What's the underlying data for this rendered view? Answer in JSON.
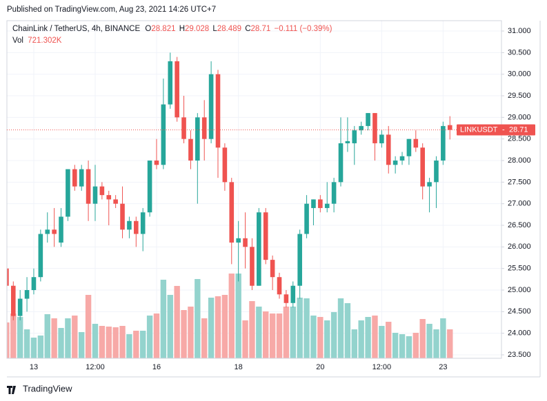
{
  "chart_data": {
    "type": "candlestick",
    "published": "Published on TradingView.com, Aug 23, 2021 14:26 UTC+7",
    "title": "ChainLink / TetherUS, 4h, BINANCE",
    "ohlc_letters": [
      "O",
      "H",
      "L",
      "C"
    ],
    "change_label": "−0.111 (−0.39%)",
    "symbol": "LINKUSDT",
    "brand": "TradingView",
    "categories": [
      null,
      null,
      null,
      null,
      "13",
      null,
      null,
      null,
      null,
      null,
      null,
      null,
      null,
      "12:00",
      null,
      null,
      null,
      null,
      null,
      null,
      null,
      null,
      "16",
      null,
      null,
      null,
      null,
      null,
      null,
      null,
      null,
      null,
      null,
      null,
      "18",
      null,
      null,
      null,
      null,
      null,
      null,
      null,
      null,
      null,
      null,
      null,
      "20",
      null,
      null,
      null,
      null,
      null,
      null,
      null,
      null,
      "12:00",
      null,
      null,
      null,
      null,
      null,
      null,
      null,
      null,
      "23",
      null
    ],
    "open": [
      25.5,
      25.1,
      24.4,
      24.8,
      25.0,
      25.3,
      26.3,
      26.4,
      26.1,
      26.7,
      27.8,
      27.4,
      27.8,
      27.0,
      27.4,
      27.2,
      27.1,
      27.0,
      26.4,
      26.6,
      26.3,
      26.8,
      28.0,
      27.9,
      29.3,
      30.3,
      29.0,
      28.5,
      28.0,
      29.0,
      28.5,
      30.0,
      28.3,
      27.5,
      26.1,
      26.2,
      26.0,
      25.1,
      26.8,
      25.7,
      25.3,
      24.9,
      24.7,
      25.1,
      26.3,
      26.9,
      27.1,
      26.9,
      27.0,
      27.5,
      28.4,
      28.4,
      28.7,
      28.8,
      29.1,
      28.4,
      28.6,
      27.9,
      28.0,
      28.1,
      28.5,
      28.3,
      27.4,
      27.5,
      28.0,
      28.821
    ],
    "high": [
      25.9,
      25.2,
      25.0,
      25.3,
      25.5,
      26.4,
      26.8,
      26.9,
      26.9,
      27.8,
      27.9,
      27.9,
      28.0,
      27.9,
      27.5,
      27.3,
      27.2,
      27.4,
      26.7,
      26.7,
      26.9,
      28.0,
      28.5,
      29.9,
      30.5,
      30.4,
      29.5,
      28.7,
      29.1,
      29.4,
      30.3,
      30.1,
      28.4,
      27.6,
      26.6,
      26.8,
      26.2,
      26.9,
      26.9,
      25.8,
      25.4,
      25.0,
      25.2,
      26.4,
      27.2,
      27.1,
      27.2,
      27.5,
      27.6,
      29.0,
      29.0,
      28.8,
      28.9,
      29.1,
      29.1,
      28.7,
      28.8,
      28.1,
      28.2,
      28.5,
      28.7,
      28.4,
      27.6,
      28.1,
      28.9,
      29.028
    ],
    "low": [
      25.0,
      24.3,
      24.3,
      24.5,
      24.9,
      25.2,
      26.1,
      26.0,
      26.0,
      26.6,
      27.3,
      27.3,
      26.6,
      26.6,
      27.1,
      26.5,
      26.9,
      26.2,
      26.2,
      26.0,
      25.9,
      26.7,
      27.8,
      27.8,
      29.2,
      28.9,
      28.4,
      27.8,
      27.0,
      28.0,
      28.4,
      27.6,
      27.3,
      25.6,
      25.2,
      25.5,
      25.0,
      25.1,
      25.6,
      25.0,
      24.8,
      24.6,
      24.6,
      24.8,
      26.2,
      26.5,
      26.8,
      26.8,
      26.8,
      27.4,
      28.2,
      27.9,
      28.6,
      28.7,
      28.0,
      28.3,
      27.7,
      27.7,
      27.9,
      27.9,
      28.2,
      27.1,
      26.8,
      26.9,
      27.9,
      28.489
    ],
    "close": [
      25.1,
      24.4,
      24.8,
      25.0,
      25.3,
      26.3,
      26.4,
      26.3,
      26.7,
      27.8,
      27.4,
      27.8,
      27.0,
      27.4,
      27.2,
      27.1,
      27.0,
      26.4,
      26.6,
      26.3,
      26.8,
      28.0,
      27.9,
      29.3,
      30.3,
      29.0,
      28.5,
      28.0,
      29.0,
      28.5,
      30.0,
      28.3,
      27.5,
      26.1,
      26.2,
      26.0,
      25.1,
      26.8,
      25.7,
      25.3,
      24.9,
      24.7,
      25.1,
      26.3,
      27.0,
      27.1,
      26.9,
      27.0,
      27.5,
      28.4,
      28.45,
      28.7,
      28.8,
      29.1,
      28.4,
      28.6,
      27.9,
      28.0,
      28.1,
      28.5,
      28.3,
      27.4,
      27.5,
      28.0,
      28.8,
      28.71
    ],
    "volume": {
      "name": "Vol",
      "values": [
        893,
        1116,
        1030,
        721,
        515,
        567,
        1099,
        996,
        756,
        996,
        1065,
        653,
        1580,
        859,
        807,
        790,
        773,
        807,
        601,
        687,
        687,
        1065,
        1116,
        1958,
        1580,
        1803,
        1202,
        1288,
        1975,
        996,
        1511,
        1546,
        1580,
        2112,
        2112,
        945,
        1425,
        1288,
        1168,
        1116,
        1116,
        1288,
        1288,
        1511,
        1494,
        1065,
        1030,
        945,
        1151,
        1494,
        1374,
        721,
        945,
        1030,
        1065,
        807,
        910,
        635,
        601,
        550,
        635,
        979,
        859,
        721,
        996,
        721.302
      ],
      "value_labels": [
        null,
        null,
        null,
        null,
        null,
        null,
        null,
        null,
        null,
        null,
        null,
        null,
        null,
        null,
        null,
        null,
        null,
        null,
        null,
        null,
        null,
        null,
        null,
        null,
        null,
        null,
        null,
        null,
        null,
        null,
        null,
        null,
        null,
        null,
        null,
        null,
        null,
        null,
        null,
        null,
        null,
        null,
        null,
        null,
        null,
        null,
        null,
        null,
        null,
        null,
        null,
        null,
        null,
        null,
        null,
        null,
        null,
        null,
        null,
        null,
        null,
        null,
        null,
        null,
        null,
        "721.302K"
      ]
    },
    "up_color": "#26a69a",
    "down_color": "#ef5350",
    "up_volume_color": "#93d3cd",
    "down_volume_color": "#f7a9a7",
    "ylim": [
      23.42,
      31.24
    ],
    "yticks": [
      {
        "value": 23.5,
        "label": "23.500"
      },
      {
        "value": 24,
        "label": "24.000"
      },
      {
        "value": 24.5,
        "label": "24.500"
      },
      {
        "value": 25,
        "label": "25.000"
      },
      {
        "value": 25.5,
        "label": "25.500"
      },
      {
        "value": 26,
        "label": "26.000"
      },
      {
        "value": 26.5,
        "label": "26.500"
      },
      {
        "value": 27,
        "label": "27.000"
      },
      {
        "value": 27.5,
        "label": "27.500"
      },
      {
        "value": 28,
        "label": "28.000"
      },
      {
        "value": 28.5,
        "label": "28.500"
      },
      {
        "value": 29,
        "label": "29.000"
      },
      {
        "value": 29.5,
        "label": "29.500"
      },
      {
        "value": 30,
        "label": "30.000"
      },
      {
        "value": 30.5,
        "label": "30.500"
      },
      {
        "value": 31,
        "label": "31.000"
      }
    ],
    "grid": true
  }
}
